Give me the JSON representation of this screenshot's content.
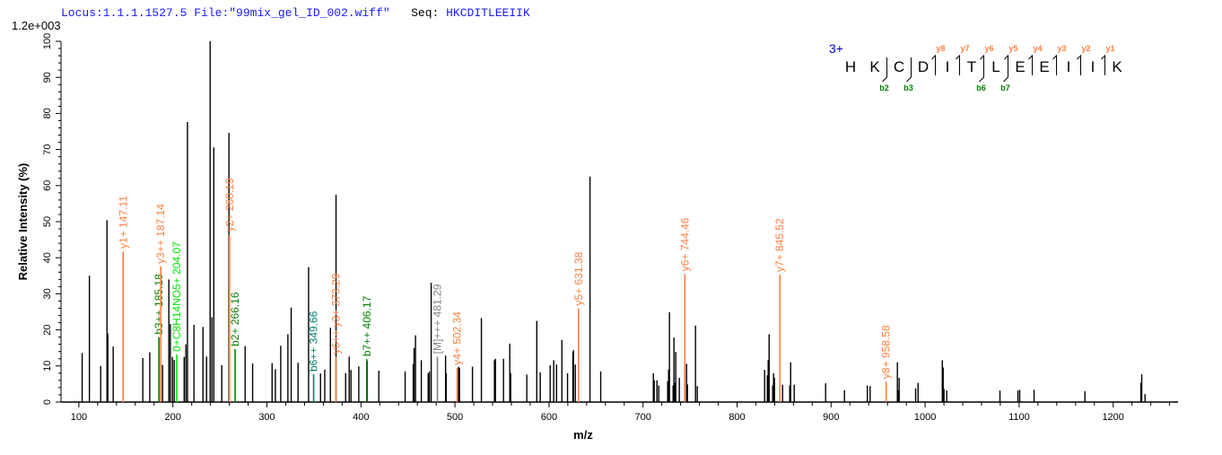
{
  "header": {
    "locus": "Locus:1.1.1.1527.5",
    "file": "File:\"99mix_gel_ID_002.wiff\"",
    "seq_label": "Seq:",
    "seq": "HKCDITLEEIIK"
  },
  "colors": {
    "y": "#ff7f3f",
    "b": "#008000",
    "teal": "#00806a",
    "bright": "#00e600",
    "gray": "#808080",
    "peak": "#000000",
    "charge": "#0000cc"
  },
  "chart_data": {
    "type": "bar",
    "scale_label": "1.2e+003",
    "xlabel": "m/z",
    "ylabel": "Relative  Intensity (%)",
    "xlim": [
      81,
      1269
    ],
    "ylim": [
      0,
      100
    ],
    "x_ticks": [
      100,
      200,
      300,
      400,
      500,
      600,
      700,
      800,
      900,
      1000,
      1100,
      1200
    ],
    "y_ticks": [
      0,
      10,
      20,
      30,
      40,
      50,
      60,
      70,
      80,
      90,
      100
    ],
    "grid": false,
    "peaks": [
      [
        103.5,
        13.6
      ],
      [
        111.2,
        35
      ],
      [
        123.2,
        10
      ],
      [
        129.9,
        50.4
      ],
      [
        130.8,
        19
      ],
      [
        136.5,
        15.4
      ],
      [
        168,
        12.2
      ],
      [
        175.4,
        13.8
      ],
      [
        189,
        10.3
      ],
      [
        195.7,
        34
      ],
      [
        197.3,
        21.6
      ],
      [
        199.5,
        12.5
      ],
      [
        201.4,
        11.7
      ],
      [
        212,
        12.5
      ],
      [
        213.8,
        16
      ],
      [
        215.5,
        77.6
      ],
      [
        222.4,
        21.4
      ],
      [
        232,
        20.8
      ],
      [
        235.8,
        12.6
      ],
      [
        239.6,
        100
      ],
      [
        241.5,
        23.5
      ],
      [
        243.5,
        70.6
      ],
      [
        252,
        10.2
      ],
      [
        259.6,
        74.6
      ],
      [
        276.8,
        15.5
      ],
      [
        284.8,
        10.7
      ],
      [
        305.5,
        10.8
      ],
      [
        309,
        9.1
      ],
      [
        314.7,
        15.6
      ],
      [
        322.3,
        18.8
      ],
      [
        325.8,
        26.2
      ],
      [
        333.1,
        10.9
      ],
      [
        344.3,
        37.4
      ],
      [
        357,
        7.9
      ],
      [
        361.5,
        9
      ],
      [
        367.5,
        20.6
      ],
      [
        373.5,
        57.5
      ],
      [
        383.7,
        8
      ],
      [
        387.5,
        12.6
      ],
      [
        389.4,
        8.9
      ],
      [
        397.7,
        9.9
      ],
      [
        406.6,
        11.4
      ],
      [
        419,
        8.7
      ],
      [
        447,
        8.5
      ],
      [
        455.6,
        10.5
      ],
      [
        456.5,
        15
      ],
      [
        458,
        18.5
      ],
      [
        464.2,
        11.6
      ],
      [
        471.5,
        8
      ],
      [
        472.8,
        8.5
      ],
      [
        474.7,
        33.1
      ],
      [
        490,
        12.9
      ],
      [
        490.6,
        8
      ],
      [
        503.9,
        9.8
      ],
      [
        504.8,
        9.4
      ],
      [
        518.6,
        9.8
      ],
      [
        528.1,
        23.3
      ],
      [
        542,
        11.6
      ],
      [
        543,
        12
      ],
      [
        551.6,
        12
      ],
      [
        558.3,
        16.2
      ],
      [
        559.2,
        8
      ],
      [
        576.4,
        7.6
      ],
      [
        587,
        22.5
      ],
      [
        590.7,
        8.2
      ],
      [
        601.2,
        10.2
      ],
      [
        605,
        11.6
      ],
      [
        608,
        10.4
      ],
      [
        613.7,
        17.2
      ],
      [
        619.7,
        8
      ],
      [
        625.4,
        13.8
      ],
      [
        626,
        14.4
      ],
      [
        628,
        10.4
      ],
      [
        643.6,
        62.5
      ],
      [
        655,
        8.5
      ],
      [
        711,
        8
      ],
      [
        711.9,
        6
      ],
      [
        714.8,
        6
      ],
      [
        716.7,
        4.6
      ],
      [
        726.2,
        5.8
      ],
      [
        727.2,
        9
      ],
      [
        728.1,
        24.9
      ],
      [
        732,
        4.6
      ],
      [
        732.9,
        17.9
      ],
      [
        733.9,
        5.3
      ],
      [
        734.8,
        13.9
      ],
      [
        738.6,
        6.7
      ],
      [
        744.3,
        10.2
      ],
      [
        746.3,
        10.6
      ],
      [
        747.2,
        4.9
      ],
      [
        755.8,
        21.2
      ],
      [
        757.7,
        4.4
      ],
      [
        829.3,
        8.9
      ],
      [
        832.2,
        7.4
      ],
      [
        833.1,
        11.6
      ],
      [
        834.1,
        18.8
      ],
      [
        837.9,
        4.6
      ],
      [
        838.8,
        8
      ],
      [
        839.8,
        6.7
      ],
      [
        848.4,
        4.8
      ],
      [
        856,
        4.6
      ],
      [
        857,
        11
      ],
      [
        860.8,
        4.8
      ],
      [
        894.2,
        5.2
      ],
      [
        914.2,
        3.3
      ],
      [
        938.6,
        4.6
      ],
      [
        941.5,
        4.4
      ],
      [
        970.5,
        11
      ],
      [
        971.5,
        3.3
      ],
      [
        972.4,
        6.7
      ],
      [
        989.9,
        3.8
      ],
      [
        992.5,
        5.3
      ],
      [
        1018.3,
        11.6
      ],
      [
        1019.2,
        9.6
      ],
      [
        1020.1,
        3.6
      ],
      [
        1023,
        3.2
      ],
      [
        1079.6,
        3.2
      ],
      [
        1098.7,
        3.2
      ],
      [
        1100.6,
        3.4
      ],
      [
        1115.9,
        3.4
      ],
      [
        1170,
        3
      ],
      [
        1229.5,
        5.3
      ],
      [
        1230.4,
        7.7
      ],
      [
        1233.9,
        2.2
      ]
    ],
    "annotations": [
      {
        "label": "y1+ 147.11",
        "mz": 147.11,
        "intensity": 41.8,
        "kind": "y"
      },
      {
        "label": "b3++ 185.18",
        "mz": 185.18,
        "intensity": 18,
        "kind": "b"
      },
      {
        "label": "y3++ 187.14",
        "mz": 187.14,
        "intensity": 37.6,
        "kind": "y"
      },
      {
        "label": "0+C8H14NO5+ 204.07",
        "mz": 204.07,
        "intensity": 13.2,
        "kind": "bright"
      },
      {
        "label": "y2+ 260.19",
        "mz": 260.19,
        "intensity": 46.5,
        "kind": "y"
      },
      {
        "label": "b2+ 266.16",
        "mz": 266.16,
        "intensity": 14.7,
        "kind": "b"
      },
      {
        "label": "b6++ 349.66",
        "mz": 349.66,
        "intensity": 7.7,
        "kind": "teal"
      },
      {
        "label": "y6++ y3+ 373.29",
        "mz": 373.29,
        "intensity": 12.6,
        "kind": "y"
      },
      {
        "label": "b7++ 406.17",
        "mz": 406.17,
        "intensity": 11.9,
        "kind": "b"
      },
      {
        "label": "[M]+++ 481.29",
        "mz": 481.29,
        "intensity": 12.6,
        "kind": "gray"
      },
      {
        "label": "y4+ 502.34",
        "mz": 502.34,
        "intensity": 9.5,
        "kind": "y"
      },
      {
        "label": "y5+ 631.38",
        "mz": 631.38,
        "intensity": 26,
        "kind": "y"
      },
      {
        "label": "y6+ 744.46",
        "mz": 744.46,
        "intensity": 35.5,
        "kind": "y"
      },
      {
        "label": "y7+ 845.52",
        "mz": 845.52,
        "intensity": 35.3,
        "kind": "y"
      },
      {
        "label": "y8+ 958.58",
        "mz": 958.58,
        "intensity": 5.7,
        "kind": "y"
      }
    ]
  },
  "peptide": {
    "charge": "3+",
    "residues": [
      "H",
      "K",
      "C",
      "D",
      "I",
      "T",
      "L",
      "E",
      "E",
      "I",
      "I",
      "K"
    ],
    "y_ions": [
      {
        "label": "y8",
        "after": 4
      },
      {
        "label": "y7",
        "after": 5
      },
      {
        "label": "y6",
        "after": 6
      },
      {
        "label": "y5",
        "after": 7
      },
      {
        "label": "y4",
        "after": 8
      },
      {
        "label": "y3",
        "after": 9
      },
      {
        "label": "y2",
        "after": 10
      },
      {
        "label": "y1",
        "after": 11
      }
    ],
    "b_ions": [
      {
        "label": "b2",
        "after": 2
      },
      {
        "label": "b3",
        "after": 3
      },
      {
        "label": "b6",
        "after": 6
      },
      {
        "label": "b7",
        "after": 7
      }
    ]
  }
}
